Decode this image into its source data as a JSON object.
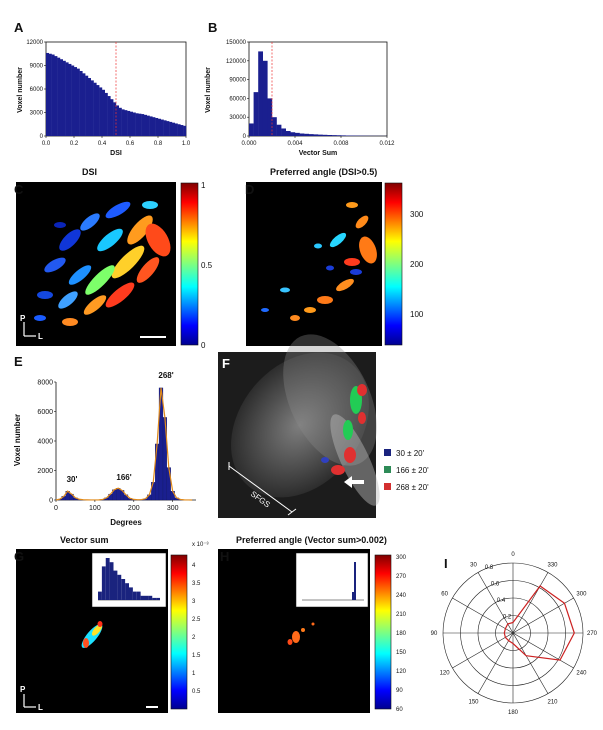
{
  "panels": {
    "A": {
      "letter": "A",
      "ylabel": "Voxel number",
      "xlabel": "DSI"
    },
    "B": {
      "letter": "B",
      "ylabel": "Voxel number",
      "xlabel": "Vector Sum"
    },
    "C": {
      "letter": "C",
      "title": "DSI",
      "colorbar_ticks": [
        "1",
        "0.5",
        "0"
      ],
      "orient_p": "P",
      "orient_l": "L"
    },
    "D": {
      "letter": "D",
      "title": "Preferred angle (DSI>0.5)",
      "colorbar_ticks": [
        "300",
        "200",
        "100"
      ]
    },
    "E": {
      "letter": "E",
      "ylabel": "Voxel number",
      "xlabel": "Degrees",
      "peaks": [
        "30'",
        "166'",
        "268'"
      ]
    },
    "F": {
      "letter": "F",
      "layer_label": "SFGS",
      "legend": [
        "30 ± 20'",
        "166 ± 20'",
        "268 ± 20'"
      ],
      "legend_colors": [
        "#1a237e",
        "#2e8b57",
        "#d32f2f"
      ]
    },
    "G": {
      "letter": "G",
      "title": "Vector sum",
      "colorbar_ticks": [
        "4",
        "3.5",
        "3",
        "2.5",
        "2",
        "1.5",
        "1",
        "0.5"
      ],
      "colorbar_exp": "x 10⁻³",
      "orient_p": "P",
      "orient_l": "L"
    },
    "H": {
      "letter": "H",
      "title": "Preferred angle (Vector sum>0.002)",
      "colorbar_ticks": [
        "300",
        "270",
        "240",
        "210",
        "180",
        "150",
        "120",
        "90",
        "60"
      ]
    },
    "I": {
      "letter": "I",
      "angles": [
        "0",
        "30",
        "60",
        "90",
        "120",
        "150",
        "180",
        "210",
        "240",
        "270",
        "300",
        "330"
      ],
      "radii": [
        "0.2",
        "0.4",
        "0.6",
        "0.8"
      ]
    }
  },
  "chart_data": [
    {
      "type": "bar",
      "panel": "A",
      "xlabel": "DSI",
      "ylabel": "Voxel number",
      "xlim": [
        0,
        1
      ],
      "ylim": [
        0,
        12000
      ],
      "xticks": [
        "0.0",
        "0.2",
        "0.4",
        "0.6",
        "0.8",
        "1.0"
      ],
      "yticks": [
        "0",
        "3000",
        "6000",
        "9000",
        "12000"
      ],
      "threshold": 0.5,
      "values": [
        10600,
        10500,
        10400,
        10200,
        10000,
        9800,
        9600,
        9400,
        9200,
        9000,
        8800,
        8600,
        8300,
        8000,
        7700,
        7400,
        7100,
        6800,
        6500,
        6200,
        5900,
        5500,
        5100,
        4700,
        4300,
        3900,
        3600,
        3400,
        3300,
        3200,
        3100,
        3000,
        2900,
        2850,
        2800,
        2700,
        2600,
        2500,
        2400,
        2300,
        2200,
        2100,
        2000,
        1900,
        1800,
        1700,
        1600,
        1500,
        1400,
        1300
      ]
    },
    {
      "type": "bar",
      "panel": "B",
      "xlabel": "Vector Sum",
      "ylabel": "Voxel number",
      "xlim": [
        0,
        0.012
      ],
      "ylim": [
        0,
        150000
      ],
      "xticks": [
        "0.000",
        "0.004",
        "0.008",
        "0.012"
      ],
      "yticks": [
        "0",
        "30000",
        "60000",
        "90000",
        "120000",
        "150000"
      ],
      "threshold": 0.002,
      "values": [
        20000,
        70000,
        135000,
        120000,
        60000,
        30000,
        18000,
        12000,
        8000,
        6000,
        5000,
        4000,
        3500,
        3000,
        2600,
        2200,
        1900,
        1600,
        1400,
        1200,
        1000,
        800,
        700,
        600,
        500,
        400,
        300,
        250,
        200,
        150
      ]
    },
    {
      "type": "bar",
      "panel": "E",
      "xlabel": "Degrees",
      "ylabel": "Voxel number",
      "xlim": [
        0,
        360
      ],
      "ylim": [
        0,
        8000
      ],
      "xticks": [
        "0",
        "100",
        "200",
        "300"
      ],
      "yticks": [
        "0",
        "2000",
        "4000",
        "6000",
        "8000"
      ],
      "bin_centers": [
        0,
        10,
        20,
        30,
        40,
        50,
        60,
        70,
        80,
        90,
        100,
        110,
        120,
        130,
        140,
        150,
        160,
        170,
        180,
        190,
        200,
        210,
        220,
        230,
        240,
        250,
        260,
        270,
        280,
        290,
        300,
        310,
        320,
        330,
        340,
        350
      ],
      "values": [
        0,
        60,
        250,
        600,
        400,
        150,
        50,
        20,
        10,
        5,
        5,
        10,
        40,
        150,
        400,
        700,
        800,
        650,
        350,
        120,
        40,
        20,
        30,
        90,
        350,
        1200,
        3800,
        7600,
        5600,
        2200,
        600,
        150,
        40,
        10,
        5,
        0
      ],
      "peaks": [
        30,
        166,
        268
      ]
    },
    {
      "type": "histogram",
      "panel": "G-inset",
      "values": [
        2,
        8,
        10,
        9,
        7,
        6,
        5,
        4,
        3,
        2,
        2,
        1,
        1,
        1,
        0.5,
        0.5
      ]
    },
    {
      "type": "histogram",
      "panel": "H-inset",
      "peak_angle": 268
    },
    {
      "type": "line",
      "panel": "I",
      "polar": true,
      "rmax": 0.8,
      "angle_deg": [
        0,
        30,
        60,
        90,
        120,
        150,
        180,
        210,
        240,
        270,
        300,
        330
      ],
      "r": [
        0.12,
        0.12,
        0.1,
        0.1,
        0.1,
        0.1,
        0.12,
        0.3,
        0.62,
        0.7,
        0.68,
        0.62
      ]
    }
  ]
}
